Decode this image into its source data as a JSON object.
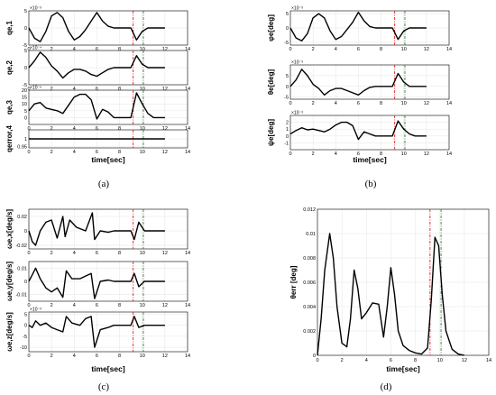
{
  "colors": {
    "signal": "#000000",
    "red_marker": "#e41a1c",
    "green_marker": "#2e7d32",
    "grid": "#dddddd"
  },
  "chart_data": [
    {
      "panel": "(a)",
      "type": "line",
      "xlabel": "time[sec]",
      "xticks": [
        "0",
        "2",
        "4",
        "6",
        "8",
        "10",
        "12",
        "14"
      ],
      "xlim": [
        0,
        14
      ],
      "markers": [
        9.2,
        10.1
      ],
      "subplots": [
        {
          "ylabel": "qe,1",
          "exponent": "×10⁻³",
          "ylim": [
            -5,
            5
          ],
          "yticks": [
            "5",
            "0",
            "-5"
          ],
          "x": [
            0,
            0.5,
            1,
            1.5,
            2,
            2.5,
            3,
            3.5,
            4,
            4.5,
            5,
            5.5,
            6,
            6.5,
            7,
            7.5,
            8,
            8.5,
            9,
            9.5,
            10,
            10.5,
            11,
            12
          ],
          "y": [
            0,
            -3,
            -4,
            -1,
            3.5,
            4.5,
            3,
            -1,
            -3.5,
            -2.5,
            -0.5,
            2,
            4.5,
            2,
            0.5,
            0,
            0,
            0,
            0,
            -3.5,
            -1,
            0,
            0,
            0
          ]
        },
        {
          "ylabel": "qe,2",
          "exponent": "×10⁻⁴",
          "ylim": [
            -5,
            5
          ],
          "yticks": [
            "5",
            "0",
            "-5"
          ],
          "x": [
            0,
            0.5,
            1,
            1.5,
            2,
            2.5,
            3,
            3.5,
            4,
            4.5,
            5,
            5.5,
            6,
            6.5,
            7,
            7.5,
            8,
            8.5,
            9,
            9.5,
            10,
            10.5,
            11,
            12
          ],
          "y": [
            0,
            2,
            4.5,
            3,
            0.5,
            -1,
            -3,
            -1.5,
            -0.5,
            -0.5,
            -1,
            -2,
            -2.5,
            -1.5,
            -0.5,
            0,
            0,
            0,
            0,
            3.5,
            1,
            0,
            0,
            0
          ]
        },
        {
          "ylabel": "qe,3",
          "exponent": "×10⁻⁶",
          "ylim": [
            -5,
            20
          ],
          "yticks": [
            "20",
            "15",
            "10",
            "5",
            "0"
          ],
          "x": [
            0,
            0.5,
            1,
            1.5,
            2,
            2.5,
            3,
            3.5,
            4,
            4.5,
            5,
            5.5,
            6,
            6.5,
            7,
            7.5,
            8,
            8.5,
            9,
            9.5,
            10,
            10.5,
            11,
            12
          ],
          "y": [
            5,
            10,
            11,
            7,
            6,
            5,
            3,
            9,
            15,
            17,
            17,
            13,
            -1,
            6,
            4,
            0,
            0,
            0,
            0,
            18,
            10,
            3,
            0,
            0
          ]
        },
        {
          "ylabel": "qerror,4",
          "exponent": "",
          "ylim": [
            0.94,
            1.06
          ],
          "yticks": [
            "1",
            "0.95"
          ],
          "x": [
            0,
            12
          ],
          "y": [
            1,
            1
          ]
        }
      ]
    },
    {
      "panel": "(b)",
      "type": "line",
      "xlabel": "time[sec]",
      "xticks": [
        "0",
        "2",
        "4",
        "6",
        "8",
        "10",
        "12",
        "14"
      ],
      "xlim": [
        0,
        14
      ],
      "markers": [
        9.2,
        10.1
      ],
      "subplots": [
        {
          "ylabel": "φe[deg]",
          "exponent": "×10⁻³",
          "ylim": [
            -6,
            6
          ],
          "yticks": [
            "5",
            "0",
            "-5"
          ],
          "x": [
            0,
            0.5,
            1,
            1.5,
            2,
            2.5,
            3,
            3.5,
            4,
            4.5,
            5,
            5.5,
            6,
            6.5,
            7,
            7.5,
            8,
            8.5,
            9,
            9.5,
            10,
            10.5,
            11,
            12
          ],
          "y": [
            0,
            -3.5,
            -4.5,
            -2,
            3.5,
            5,
            3.5,
            -1,
            -4,
            -3,
            -0.5,
            2,
            5.5,
            2.5,
            0.5,
            0,
            0,
            0,
            0,
            -4,
            -1,
            0,
            0,
            0
          ]
        },
        {
          "ylabel": "θe[deg]",
          "exponent": "×10⁻³",
          "ylim": [
            -6,
            10
          ],
          "yticks": [
            "5",
            "0",
            "-5"
          ],
          "x": [
            0,
            0.5,
            1,
            1.5,
            2,
            2.5,
            3,
            3.5,
            4,
            4.5,
            5,
            5.5,
            6,
            6.5,
            7,
            7.5,
            8,
            8.5,
            9,
            9.5,
            10,
            10.5,
            11,
            12
          ],
          "y": [
            0,
            3,
            8,
            5,
            1,
            -1,
            -4,
            -2,
            -1,
            -1,
            -2,
            -3,
            -4,
            -2,
            -0.5,
            0,
            0,
            0,
            0,
            6,
            2,
            0,
            0,
            0
          ]
        },
        {
          "ylabel": "ψe[deg]",
          "exponent": "×10⁻³",
          "ylim": [
            -2,
            3
          ],
          "yticks": [
            "2",
            "1",
            "0",
            "-1"
          ],
          "x": [
            0,
            0.5,
            1,
            1.5,
            2,
            2.5,
            3,
            3.5,
            4,
            4.5,
            5,
            5.5,
            6,
            6.5,
            7,
            7.5,
            8,
            8.5,
            9,
            9.5,
            10,
            10.5,
            11,
            12
          ],
          "y": [
            0.3,
            0.8,
            1.2,
            0.9,
            1.0,
            0.8,
            0.6,
            1.0,
            1.6,
            2.0,
            2.0,
            1.5,
            -0.5,
            0.6,
            0.3,
            0,
            0,
            0,
            0,
            2.2,
            1.0,
            0.3,
            0,
            0
          ]
        }
      ]
    },
    {
      "panel": "(c)",
      "type": "line",
      "xlabel": "time[sec]",
      "xticks": [
        "0",
        "2",
        "4",
        "6",
        "8",
        "10",
        "12",
        "14"
      ],
      "xlim": [
        0,
        14
      ],
      "markers": [
        9.2,
        10.1
      ],
      "subplots": [
        {
          "ylabel": "ωe,x[deg/s]",
          "exponent": "",
          "ylim": [
            -0.025,
            0.03
          ],
          "yticks": [
            "0.02",
            "0",
            "-0.02"
          ],
          "x": [
            0,
            0.3,
            0.6,
            1.0,
            1.5,
            2.0,
            2.5,
            3.0,
            3.2,
            3.6,
            4.2,
            5.0,
            5.6,
            5.8,
            6.3,
            7.0,
            7.5,
            8,
            9,
            9.3,
            9.7,
            10.2,
            11,
            12
          ],
          "y": [
            0,
            -0.015,
            -0.02,
            0,
            0.012,
            0.015,
            -0.01,
            0.02,
            -0.008,
            0.015,
            0.005,
            0.0,
            0.025,
            -0.012,
            0.0,
            -0.002,
            0,
            0,
            0,
            -0.012,
            0.012,
            0,
            0,
            0
          ]
        },
        {
          "ylabel": "ωe,y[deg/s]",
          "exponent": "",
          "ylim": [
            -0.015,
            0.015
          ],
          "yticks": [
            "0.01",
            "0",
            "-0.01"
          ],
          "x": [
            0,
            0.3,
            0.6,
            1.0,
            1.5,
            2.0,
            2.5,
            3.0,
            3.3,
            3.8,
            4.5,
            5.0,
            5.5,
            5.8,
            6.3,
            7.0,
            7.5,
            8,
            9,
            9.3,
            9.7,
            10.2,
            11,
            12
          ],
          "y": [
            0,
            0.005,
            0.01,
            0.002,
            -0.005,
            -0.008,
            -0.005,
            -0.012,
            0.008,
            0.002,
            0.002,
            0.004,
            0.006,
            -0.013,
            0.0,
            0.001,
            0,
            0,
            0,
            0.006,
            -0.004,
            0,
            0,
            0
          ]
        },
        {
          "ylabel": "ωe,z[deg/s]",
          "exponent": "×10⁻³",
          "ylim": [
            -12,
            6
          ],
          "yticks": [
            "5",
            "0",
            "-5",
            "-10"
          ],
          "x": [
            0,
            0.3,
            0.6,
            1.0,
            1.5,
            2.0,
            2.5,
            3.0,
            3.3,
            3.8,
            4.5,
            5.0,
            5.5,
            5.8,
            6.3,
            7.0,
            7.5,
            8,
            9,
            9.3,
            9.7,
            10.2,
            11,
            12
          ],
          "y": [
            0,
            -1,
            2,
            0,
            1,
            -1,
            -2,
            -3,
            4,
            1,
            0,
            3,
            4,
            -10,
            -2,
            -1,
            0,
            0,
            0,
            4,
            -1,
            0,
            0,
            0
          ]
        }
      ]
    },
    {
      "panel": "(d)",
      "type": "line",
      "xlabel": "time[sec]",
      "ylabel": "θerr [deg]",
      "xticks": [
        "0",
        "2",
        "4",
        "6",
        "8",
        "10",
        "12",
        "14"
      ],
      "yticks": [
        "0",
        "0.002",
        "0.004",
        "0.006",
        "0.008",
        "0.01",
        "0.012"
      ],
      "xlim": [
        0,
        14
      ],
      "ylim": [
        0,
        0.012
      ],
      "markers": [
        9.2,
        10.1
      ],
      "x": [
        0,
        0.3,
        0.6,
        1.0,
        1.3,
        1.6,
        2.0,
        2.4,
        2.7,
        3.0,
        3.3,
        3.6,
        4.0,
        4.5,
        5.0,
        5.4,
        5.7,
        6.0,
        6.3,
        6.6,
        7.0,
        7.5,
        8.0,
        8.5,
        9.0,
        9.3,
        9.6,
        9.9,
        10.2,
        10.5,
        11,
        11.5,
        12
      ],
      "y": [
        0,
        0.003,
        0.007,
        0.01,
        0.008,
        0.004,
        0.001,
        0.0007,
        0.003,
        0.007,
        0.0055,
        0.003,
        0.0035,
        0.0043,
        0.0042,
        0.0015,
        0.004,
        0.0072,
        0.005,
        0.002,
        0.0008,
        0.0004,
        0.0002,
        0.0001,
        0.0006,
        0.0045,
        0.0097,
        0.009,
        0.005,
        0.002,
        0.0005,
        0.0001,
        0
      ]
    }
  ],
  "captions": [
    "(a)",
    "(b)",
    "(c)",
    "(d)"
  ]
}
